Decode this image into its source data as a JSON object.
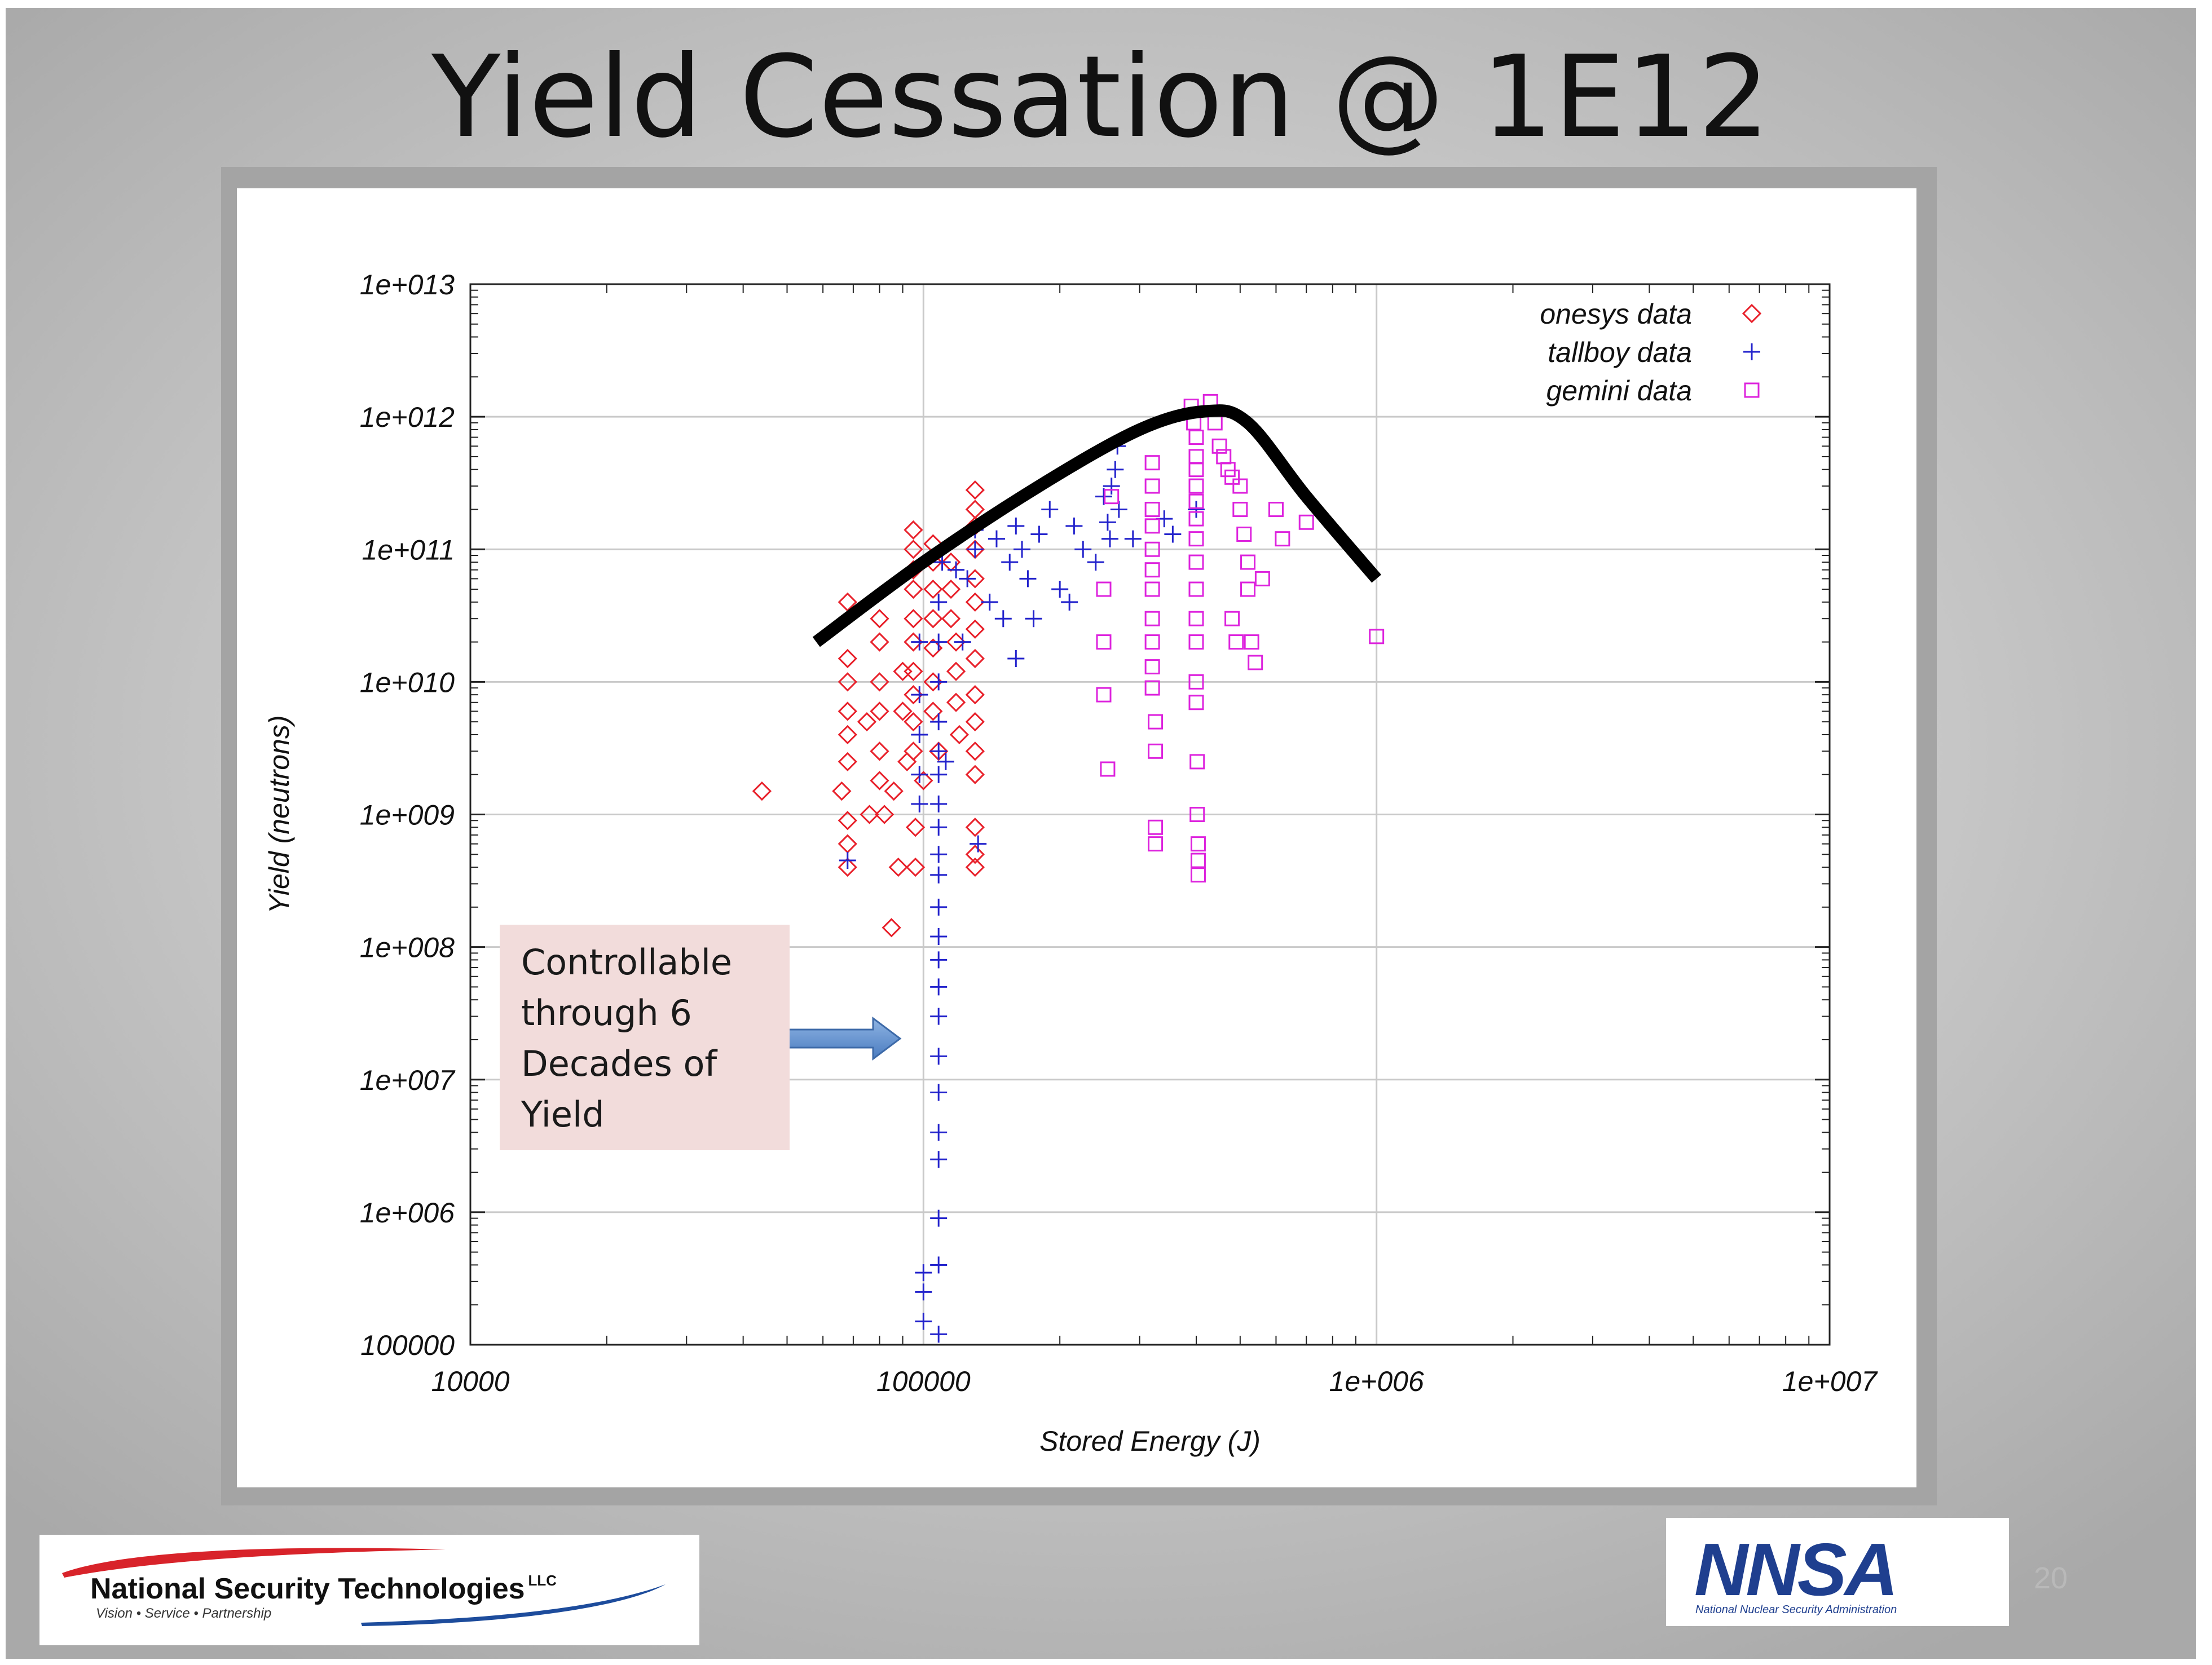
{
  "slide": {
    "title": "Yield Cessation @ 1E12",
    "page_number": "20",
    "callout_lines": [
      "Controllable",
      "through 6",
      "Decades of",
      "Yield"
    ],
    "logos": {
      "left_name": "National Security Technologies",
      "left_suffix": "LLC",
      "left_tagline": "Vision • Service • Partnership",
      "right_name": "NNSA",
      "right_subtitle": "National Nuclear Security Administration"
    }
  },
  "chart_data": {
    "type": "scatter",
    "xscale": "log",
    "yscale": "log",
    "xlim": [
      10000,
      10000000
    ],
    "ylim": [
      100000,
      10000000000000
    ],
    "xlabel": "Stored Energy (J)",
    "ylabel": "Yield (neutrons)",
    "xticks": [
      10000,
      100000,
      1000000,
      10000000
    ],
    "xtick_labels": [
      "10000",
      "100000",
      "1e+006",
      "1e+007"
    ],
    "yticks": [
      100000,
      1000000,
      10000000,
      100000000,
      1000000000,
      10000000000,
      100000000000,
      1000000000000,
      10000000000000
    ],
    "ytick_labels": [
      "100000",
      "1e+006",
      "1e+007",
      "1e+008",
      "1e+009",
      "1e+010",
      "1e+011",
      "1e+012",
      "1e+013"
    ],
    "grid": true,
    "legend_position": "top-right",
    "series": [
      {
        "name": "onesys data",
        "marker": "diamond",
        "color": "#e8202a",
        "points": [
          [
            44000,
            1500000000.0
          ],
          [
            66000,
            1500000000.0
          ],
          [
            68000,
            40000000000.0
          ],
          [
            68000,
            15000000000.0
          ],
          [
            68000,
            10000000000.0
          ],
          [
            68000,
            6000000000.0
          ],
          [
            68000,
            4000000000.0
          ],
          [
            68000,
            2500000000.0
          ],
          [
            68000,
            900000000.0
          ],
          [
            68000,
            600000000.0
          ],
          [
            68000,
            400000000.0
          ],
          [
            75000,
            5000000000.0
          ],
          [
            76000,
            1000000000.0
          ],
          [
            80000,
            30000000000.0
          ],
          [
            80000,
            20000000000.0
          ],
          [
            80000,
            10000000000.0
          ],
          [
            80000,
            6000000000.0
          ],
          [
            80000,
            3000000000.0
          ],
          [
            80000,
            1800000000.0
          ],
          [
            82000,
            1000000000.0
          ],
          [
            85000,
            140000000.0
          ],
          [
            86000,
            1500000000.0
          ],
          [
            88000,
            400000000.0
          ],
          [
            90000,
            12000000000.0
          ],
          [
            90000,
            6000000000.0
          ],
          [
            92000,
            2500000000.0
          ],
          [
            95000,
            140000000000.0
          ],
          [
            95000,
            100000000000.0
          ],
          [
            95000,
            70000000000.0
          ],
          [
            95000,
            50000000000.0
          ],
          [
            95000,
            30000000000.0
          ],
          [
            95000,
            20000000000.0
          ],
          [
            95000,
            12000000000.0
          ],
          [
            95000,
            8000000000.0
          ],
          [
            95000,
            5000000000.0
          ],
          [
            95000,
            3000000000.0
          ],
          [
            96000,
            800000000.0
          ],
          [
            96000,
            400000000.0
          ],
          [
            100000,
            1800000000.0
          ],
          [
            105000,
            110000000000.0
          ],
          [
            105000,
            80000000000.0
          ],
          [
            105000,
            50000000000.0
          ],
          [
            105000,
            30000000000.0
          ],
          [
            105000,
            18000000000.0
          ],
          [
            105000,
            10000000000.0
          ],
          [
            105000,
            6000000000.0
          ],
          [
            108000,
            3000000000.0
          ],
          [
            115000,
            80000000000.0
          ],
          [
            115000,
            50000000000.0
          ],
          [
            115000,
            30000000000.0
          ],
          [
            118000,
            20000000000.0
          ],
          [
            118000,
            12000000000.0
          ],
          [
            118000,
            7000000000.0
          ],
          [
            120000,
            4000000000.0
          ],
          [
            130000,
            280000000000.0
          ],
          [
            130000,
            200000000000.0
          ],
          [
            130000,
            150000000000.0
          ],
          [
            130000,
            100000000000.0
          ],
          [
            130000,
            60000000000.0
          ],
          [
            130000,
            40000000000.0
          ],
          [
            130000,
            25000000000.0
          ],
          [
            130000,
            15000000000.0
          ],
          [
            130000,
            8000000000.0
          ],
          [
            130000,
            5000000000.0
          ],
          [
            130000,
            3000000000.0
          ],
          [
            130000,
            2000000000.0
          ],
          [
            130000,
            800000000.0
          ],
          [
            130000,
            500000000.0
          ],
          [
            130000,
            400000000.0
          ]
        ]
      },
      {
        "name": "tallboy data",
        "marker": "plus",
        "color": "#2323cc",
        "points": [
          [
            68000,
            450000000.0
          ],
          [
            98000,
            20000000000.0
          ],
          [
            98000,
            8000000000.0
          ],
          [
            98000,
            4000000000.0
          ],
          [
            98000,
            2000000000.0
          ],
          [
            98000,
            1200000000.0
          ],
          [
            100000,
            350000.0
          ],
          [
            100000,
            250000.0
          ],
          [
            100000,
            150000.0
          ],
          [
            108000,
            120000.0
          ],
          [
            108000,
            400000.0
          ],
          [
            108000,
            900000.0
          ],
          [
            108000,
            2500000.0
          ],
          [
            108000,
            4000000.0
          ],
          [
            108000,
            8000000.0
          ],
          [
            108000,
            15000000.0
          ],
          [
            108000,
            30000000.0
          ],
          [
            108000,
            50000000.0
          ],
          [
            108000,
            80000000.0
          ],
          [
            108000,
            120000000.0
          ],
          [
            108000,
            200000000.0
          ],
          [
            108000,
            350000000.0
          ],
          [
            108000,
            500000000.0
          ],
          [
            108000,
            800000000.0
          ],
          [
            108000,
            1200000000.0
          ],
          [
            108000,
            2000000000.0
          ],
          [
            108000,
            3000000000.0
          ],
          [
            108000,
            5000000000.0
          ],
          [
            108000,
            10000000000.0
          ],
          [
            108000,
            20000000000.0
          ],
          [
            108000,
            40000000000.0
          ],
          [
            110000,
            80000000000.0
          ],
          [
            112000,
            2500000000.0
          ],
          [
            118000,
            70000000000.0
          ],
          [
            122000,
            20000000000.0
          ],
          [
            125000,
            60000000000.0
          ],
          [
            130000,
            100000000000.0
          ],
          [
            130000,
            140000000000.0
          ],
          [
            132000,
            600000000.0
          ],
          [
            140000,
            40000000000.0
          ],
          [
            145000,
            120000000000.0
          ],
          [
            150000,
            30000000000.0
          ],
          [
            155000,
            80000000000.0
          ],
          [
            160000,
            15000000000.0
          ],
          [
            160000,
            150000000000.0
          ],
          [
            165000,
            100000000000.0
          ],
          [
            170000,
            60000000000.0
          ],
          [
            175000,
            30000000000.0
          ],
          [
            180000,
            130000000000.0
          ],
          [
            190000,
            200000000000.0
          ],
          [
            200000,
            50000000000.0
          ],
          [
            210000,
            40000000000.0
          ],
          [
            215000,
            150000000000.0
          ],
          [
            225000,
            100000000000.0
          ],
          [
            240000,
            80000000000.0
          ],
          [
            250000,
            250000000000.0
          ],
          [
            255000,
            160000000000.0
          ],
          [
            258000,
            120000000000.0
          ],
          [
            260000,
            300000000000.0
          ],
          [
            265000,
            400000000000.0
          ],
          [
            268000,
            600000000000.0
          ],
          [
            270000,
            200000000000.0
          ],
          [
            290000,
            120000000000.0
          ],
          [
            340000,
            170000000000.0
          ],
          [
            355000,
            130000000000.0
          ],
          [
            400000,
            200000000000.0
          ]
        ]
      },
      {
        "name": "gemini data",
        "marker": "square",
        "color": "#dd22dd",
        "points": [
          [
            250000,
            8000000000.0
          ],
          [
            250000,
            20000000000.0
          ],
          [
            250000,
            50000000000.0
          ],
          [
            255000,
            2200000000.0
          ],
          [
            260000,
            250000000000.0
          ],
          [
            320000,
            450000000000.0
          ],
          [
            320000,
            300000000000.0
          ],
          [
            320000,
            200000000000.0
          ],
          [
            320000,
            150000000000.0
          ],
          [
            320000,
            100000000000.0
          ],
          [
            320000,
            70000000000.0
          ],
          [
            320000,
            50000000000.0
          ],
          [
            320000,
            30000000000.0
          ],
          [
            320000,
            20000000000.0
          ],
          [
            320000,
            13000000000.0
          ],
          [
            320000,
            9000000000.0
          ],
          [
            325000,
            5000000000.0
          ],
          [
            325000,
            3000000000.0
          ],
          [
            325000,
            800000000.0
          ],
          [
            325000,
            600000000.0
          ],
          [
            390000,
            1200000000000.0
          ],
          [
            395000,
            900000000000.0
          ],
          [
            400000,
            700000000000.0
          ],
          [
            400000,
            500000000000.0
          ],
          [
            400000,
            400000000000.0
          ],
          [
            400000,
            300000000000.0
          ],
          [
            400000,
            230000000000.0
          ],
          [
            400000,
            170000000000.0
          ],
          [
            400000,
            120000000000.0
          ],
          [
            400000,
            80000000000.0
          ],
          [
            400000,
            50000000000.0
          ],
          [
            400000,
            30000000000.0
          ],
          [
            400000,
            20000000000.0
          ],
          [
            400000,
            10000000000.0
          ],
          [
            400000,
            7000000000.0
          ],
          [
            402000,
            2500000000.0
          ],
          [
            402000,
            1000000000.0
          ],
          [
            404000,
            600000000.0
          ],
          [
            404000,
            450000000.0
          ],
          [
            404000,
            350000000.0
          ],
          [
            430000,
            1300000000000.0
          ],
          [
            440000,
            900000000000.0
          ],
          [
            450000,
            600000000000.0
          ],
          [
            460000,
            500000000000.0
          ],
          [
            470000,
            400000000000.0
          ],
          [
            480000,
            350000000000.0
          ],
          [
            500000,
            300000000000.0
          ],
          [
            500000,
            200000000000.0
          ],
          [
            510000,
            130000000000.0
          ],
          [
            520000,
            80000000000.0
          ],
          [
            520000,
            50000000000.0
          ],
          [
            530000,
            20000000000.0
          ],
          [
            540000,
            14000000000.0
          ],
          [
            560000,
            60000000000.0
          ],
          [
            600000,
            200000000000.0
          ],
          [
            620000,
            120000000000.0
          ],
          [
            700000,
            160000000000.0
          ],
          [
            1000000,
            22000000000.0
          ],
          [
            480000,
            30000000000.0
          ],
          [
            490000,
            20000000000.0
          ]
        ]
      }
    ],
    "annotations": [
      {
        "type": "curve",
        "label": "",
        "points": [
          [
            58000,
            20000000000.0
          ],
          [
            100000,
            80000000000.0
          ],
          [
            180000,
            300000000000.0
          ],
          [
            300000,
            800000000000.0
          ],
          [
            420000,
            1100000000000.0
          ],
          [
            520000,
            900000000000.0
          ],
          [
            700000,
            250000000000.0
          ],
          [
            1000000,
            60000000000.0
          ]
        ]
      }
    ]
  }
}
